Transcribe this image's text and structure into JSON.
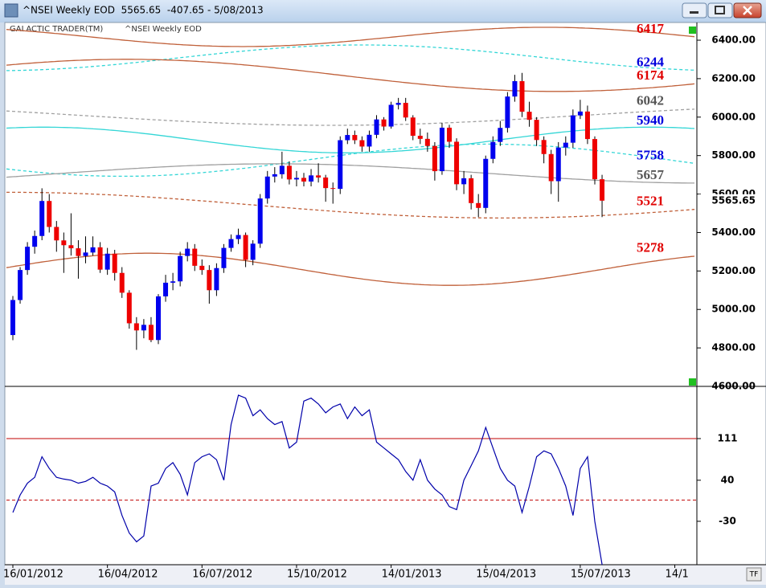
{
  "window": {
    "title": "^NSEI Weekly EOD  5565.65  -407.65 - 5/08/2013",
    "tf_button": "TF"
  },
  "chart_data": [
    {
      "type": "candlestick",
      "header": "GALACTIC TRADER(TM)",
      "subtitle": "^NSEI Weekly EOD",
      "categories": [
        "16/01/2012",
        null,
        null,
        null,
        null,
        null,
        null,
        null,
        null,
        null,
        null,
        null,
        null,
        "16/04/2012",
        null,
        null,
        null,
        null,
        null,
        null,
        null,
        null,
        null,
        null,
        null,
        null,
        "16/07/2012",
        null,
        null,
        null,
        null,
        null,
        null,
        null,
        null,
        null,
        null,
        null,
        null,
        "15/10/2012",
        null,
        null,
        null,
        null,
        null,
        null,
        null,
        null,
        null,
        null,
        null,
        null,
        "14/01/2013",
        null,
        null,
        null,
        null,
        null,
        null,
        null,
        null,
        null,
        null,
        null,
        null,
        "15/04/2013",
        null,
        null,
        null,
        null,
        null,
        null,
        null,
        null,
        null,
        null,
        null,
        null,
        "15/07/2013",
        null,
        null,
        null,
        null,
        null,
        null,
        null,
        null,
        null,
        null,
        null,
        null,
        "14/1",
        null,
        null
      ],
      "open": [
        4867,
        5049,
        5205,
        5326,
        5382,
        5564,
        5429,
        5359,
        5334,
        5318,
        5278,
        5296,
        5323,
        5207,
        5290,
        5190,
        5087,
        4928,
        4891,
        4920,
        4841,
        5068,
        5139,
        5146,
        5278,
        5316,
        5227,
        5205,
        5100,
        5215,
        5320,
        5366,
        5387,
        5258,
        5342,
        5577,
        5691,
        5703,
        5747,
        5676,
        5684,
        5665,
        5697,
        5686,
        5631,
        5627,
        5880,
        5907,
        5880,
        5847,
        5908,
        5988,
        5951,
        6064,
        6074,
        5998,
        5903,
        5887,
        5850,
        5719,
        5945,
        5872,
        5651,
        5682,
        5553,
        5528,
        5783,
        5871,
        5944,
        6107,
        6187,
        6028,
        5986,
        5881,
        5808,
        5667,
        5842,
        5867,
        6009,
        6029,
        5886,
        5677,
        null,
        null,
        null,
        null,
        null,
        null,
        null,
        null,
        null,
        null,
        null,
        null
      ],
      "high": [
        5070,
        5220,
        5350,
        5410,
        5630,
        5600,
        5460,
        5400,
        5500,
        5360,
        5380,
        5380,
        5350,
        5320,
        5310,
        5220,
        5100,
        4960,
        4950,
        4960,
        5080,
        5180,
        5190,
        5300,
        5350,
        5340,
        5260,
        5230,
        5240,
        5340,
        5390,
        5420,
        5400,
        5360,
        5600,
        5720,
        5740,
        5820,
        5770,
        5720,
        5710,
        5730,
        5760,
        5700,
        5660,
        5900,
        5940,
        5930,
        5900,
        5930,
        6010,
        6000,
        6080,
        6100,
        6100,
        6010,
        5940,
        5920,
        5870,
        5970,
        5960,
        5890,
        5720,
        5700,
        5600,
        5800,
        5900,
        5980,
        6130,
        6220,
        6230,
        6080,
        6000,
        5900,
        5830,
        5870,
        5900,
        6040,
        6090,
        6060,
        5900,
        5700,
        null,
        null,
        null,
        null,
        null,
        null,
        null,
        null,
        null,
        null,
        null,
        null
      ],
      "low": [
        4840,
        5030,
        5180,
        5290,
        5360,
        5400,
        5300,
        5190,
        5280,
        5160,
        5240,
        5280,
        5190,
        5180,
        5150,
        5060,
        4900,
        4790,
        4850,
        4830,
        4820,
        5040,
        5100,
        5120,
        5250,
        5200,
        5180,
        5030,
        5070,
        5190,
        5300,
        5340,
        5220,
        5230,
        5320,
        5550,
        5660,
        5680,
        5650,
        5640,
        5640,
        5640,
        5660,
        5560,
        5550,
        5600,
        5860,
        5860,
        5820,
        5820,
        5890,
        5930,
        5940,
        6040,
        5980,
        5880,
        5860,
        5820,
        5670,
        5700,
        5840,
        5620,
        5600,
        5520,
        5480,
        5500,
        5760,
        5850,
        5920,
        6080,
        6000,
        5950,
        5850,
        5760,
        5600,
        5560,
        5800,
        5840,
        5990,
        5860,
        5650,
        5480,
        null,
        null,
        null,
        null,
        null,
        null,
        null,
        null,
        null,
        null,
        null,
        null
      ],
      "close": [
        5049,
        5205,
        5326,
        5382,
        5564,
        5429,
        5359,
        5334,
        5318,
        5278,
        5296,
        5323,
        5207,
        5290,
        5190,
        5087,
        4928,
        4891,
        4920,
        4841,
        5068,
        5139,
        5146,
        5278,
        5316,
        5227,
        5205,
        5100,
        5215,
        5320,
        5366,
        5387,
        5258,
        5342,
        5577,
        5691,
        5703,
        5747,
        5676,
        5684,
        5665,
        5697,
        5686,
        5631,
        5627,
        5880,
        5907,
        5880,
        5847,
        5908,
        5988,
        5951,
        6064,
        6074,
        5998,
        5903,
        5887,
        5850,
        5719,
        5945,
        5872,
        5651,
        5682,
        5553,
        5528,
        5783,
        5871,
        5944,
        6107,
        6187,
        6028,
        5986,
        5881,
        5808,
        5667,
        5842,
        5867,
        6009,
        6029,
        5886,
        5677,
        5565.65,
        null,
        null,
        null,
        null,
        null,
        null,
        null,
        null,
        null,
        null,
        null,
        null
      ],
      "up_color": "#0000ee",
      "down_color": "#ee0000",
      "ylim": [
        4600,
        6492
      ],
      "yticks": [
        {
          "value": 4600,
          "label": "4600.00"
        },
        {
          "value": 4800,
          "label": "4800.00"
        },
        {
          "value": 5000,
          "label": "5000.00"
        },
        {
          "value": 5200,
          "label": "5200.00"
        },
        {
          "value": 5400,
          "label": "5400.00"
        },
        {
          "value": 5600,
          "label": "5600.00"
        },
        {
          "value": 5800,
          "label": "5800.00"
        },
        {
          "value": 6000,
          "label": "6000.00"
        },
        {
          "value": 6200,
          "label": "6200.00"
        },
        {
          "value": 6400,
          "label": "6400.00"
        }
      ],
      "last_price": 5565.65,
      "levels": [
        {
          "value": 6417,
          "color": "#e00000",
          "line_color": "#c0603a"
        },
        {
          "value": 6244,
          "color": "#0000dd",
          "line_color": "#33d6d6"
        },
        {
          "value": 6174,
          "color": "#e00000",
          "line_color": "#c0603a"
        },
        {
          "value": 6042,
          "color": "#555555",
          "line_color": "#a0a0a0"
        },
        {
          "value": 5940,
          "color": "#0000dd",
          "line_color": "#33d6d6"
        },
        {
          "value": 5758,
          "color": "#0000dd",
          "line_color": "#33d6d6"
        },
        {
          "value": 5657,
          "color": "#555555",
          "line_color": "#a0a0a0"
        },
        {
          "value": 5521,
          "color": "#e00000",
          "line_color": "#c0603a"
        },
        {
          "value": 5278,
          "color": "#e00000",
          "line_color": "#c0603a"
        }
      ]
    },
    {
      "type": "line",
      "color": "#0000aa",
      "values": [
        -15,
        15,
        35,
        45,
        80,
        60,
        45,
        42,
        40,
        35,
        38,
        45,
        35,
        30,
        20,
        -20,
        -50,
        -65,
        -55,
        30,
        35,
        60,
        70,
        50,
        15,
        70,
        80,
        85,
        75,
        40,
        135,
        185,
        180,
        150,
        160,
        145,
        135,
        140,
        95,
        105,
        175,
        180,
        170,
        155,
        165,
        170,
        145,
        165,
        150,
        160,
        105,
        95,
        85,
        75,
        55,
        40,
        75,
        40,
        25,
        15,
        -5,
        -10,
        40,
        65,
        90,
        130,
        95,
        60,
        40,
        30,
        -15,
        30,
        80,
        90,
        85,
        60,
        30,
        -20,
        60,
        80,
        -30,
        -104,
        null,
        null,
        null,
        null,
        null,
        null,
        null,
        null,
        null,
        null,
        null,
        null
      ],
      "ylim": [
        -104,
        200
      ],
      "yticks": [
        -30,
        40,
        111
      ],
      "hlines": [
        {
          "value": 111,
          "color": "#c00000",
          "dashed": false
        },
        {
          "value": 6,
          "color": "#c00000",
          "dashed": true
        }
      ]
    }
  ]
}
